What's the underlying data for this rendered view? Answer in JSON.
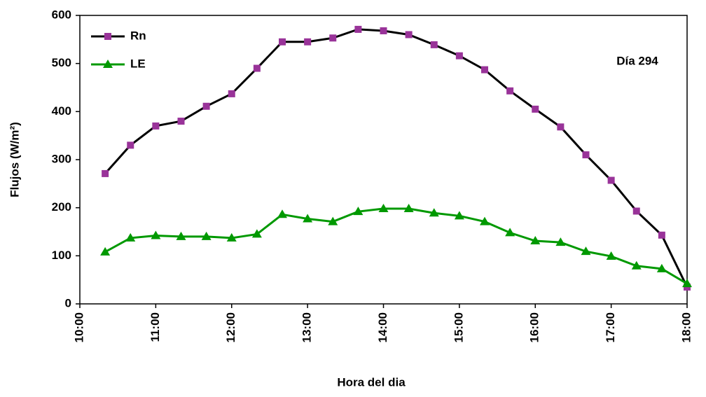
{
  "chart_data": {
    "type": "line",
    "xlabel": "Hora del dia",
    "ylabel": "Flujos (W/m²)",
    "annotation": "Día 294",
    "x": [
      620,
      640,
      660,
      680,
      700,
      720,
      740,
      760,
      780,
      800,
      820,
      840,
      860,
      880,
      900,
      920,
      940,
      960,
      980,
      1000,
      1020,
      1040,
      1060,
      1080
    ],
    "series": [
      {
        "name": "Rn",
        "color": "#993399",
        "line_color": "#000000",
        "marker": "square",
        "values": [
          271,
          330,
          370,
          380,
          411,
          437,
          490,
          545,
          545,
          553,
          571,
          568,
          560,
          539,
          516,
          487,
          443,
          405,
          368,
          310,
          257,
          193,
          143,
          35
        ]
      },
      {
        "name": "LE",
        "color": "#009900",
        "line_color": "#009900",
        "marker": "triangle",
        "values": [
          108,
          137,
          142,
          140,
          140,
          137,
          145,
          186,
          177,
          171,
          192,
          198,
          198,
          189,
          183,
          171,
          148,
          131,
          128,
          109,
          99,
          79,
          73,
          42
        ]
      }
    ],
    "xlim": [
      600,
      1080
    ],
    "xticks": [
      {
        "value": 600,
        "label": "10:00"
      },
      {
        "value": 660,
        "label": "11:00"
      },
      {
        "value": 720,
        "label": "12:00"
      },
      {
        "value": 780,
        "label": "13:00"
      },
      {
        "value": 840,
        "label": "14:00"
      },
      {
        "value": 900,
        "label": "15:00"
      },
      {
        "value": 960,
        "label": "16:00"
      },
      {
        "value": 1020,
        "label": "17:00"
      },
      {
        "value": 1080,
        "label": "18:00"
      }
    ],
    "ylim": [
      0,
      600
    ],
    "yticks": [
      0,
      100,
      200,
      300,
      400,
      500,
      600
    ],
    "grid": false,
    "legend": "upper left"
  }
}
